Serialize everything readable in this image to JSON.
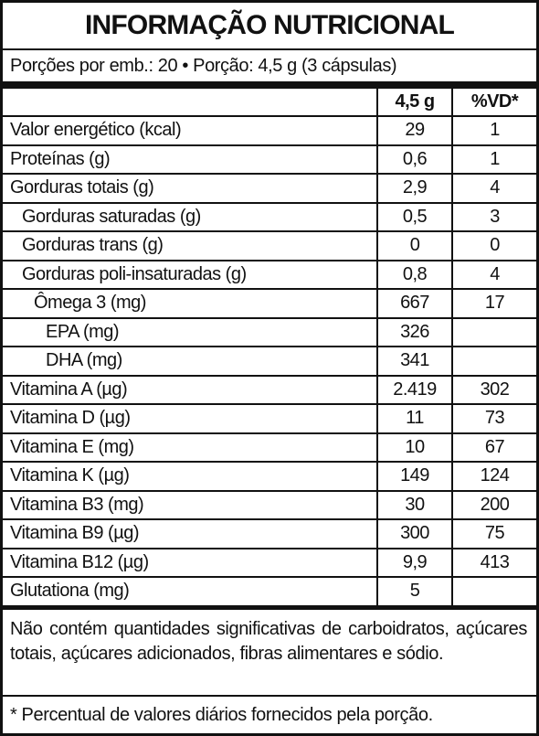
{
  "title": "INFORMAÇÃO NUTRICIONAL",
  "portion": "Porções por emb.: 20 • Porção: 4,5 g (3 cápsulas)",
  "table": {
    "header": [
      "4,5 g",
      "%VD*"
    ],
    "rows": [
      [
        "Valor energético (kcal)",
        "29",
        "1"
      ],
      [
        "Proteínas (g)",
        "0,6",
        "1"
      ],
      [
        "Gorduras totais (g)",
        "2,9",
        "4"
      ],
      [
        "Gorduras saturadas (g)",
        "0,5",
        "3"
      ],
      [
        "Gorduras trans (g)",
        "0",
        "0"
      ],
      [
        "Gorduras poli-insaturadas (g)",
        "0,8",
        "4"
      ],
      [
        "Ômega 3 (mg)",
        "667",
        "17"
      ],
      [
        "EPA (mg)",
        "326",
        null
      ],
      [
        "DHA (mg)",
        "341",
        null
      ],
      [
        "Vitamina A (µg)",
        "2.419",
        "302"
      ],
      [
        "Vitamina D (µg)",
        "11",
        "73"
      ],
      [
        "Vitamina E (mg)",
        "10",
        "67"
      ],
      [
        "Vitamina K (µg)",
        "149",
        "124"
      ],
      [
        "Vitamina B3 (mg)",
        "30",
        "200"
      ],
      [
        "Vitamina B9 (µg)",
        "300",
        "75"
      ],
      [
        "Vitamina B12 (µg)",
        "9,9",
        "413"
      ],
      [
        "Glutationa (mg)",
        "5",
        null
      ]
    ]
  },
  "note": "Não contém quantidades significativas de carboidratos, açúcares totais, açúcares adicionados, fibras alimentares e sódio.",
  "footnote": "* Percentual de valores diários fornecidos pela porção."
}
